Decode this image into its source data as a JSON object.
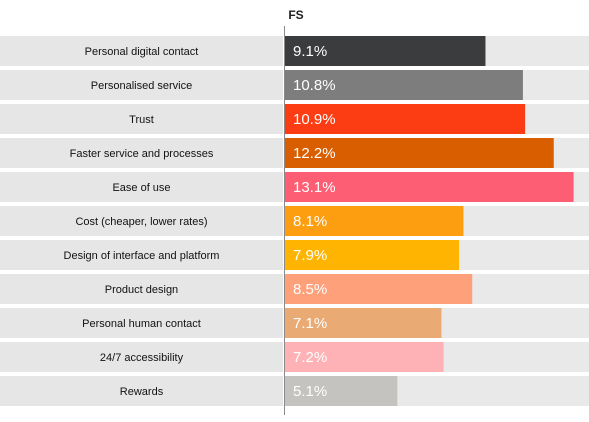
{
  "chart_data": {
    "type": "bar",
    "orientation": "horizontal",
    "column_header": "FS",
    "categories": [
      "Personal digital contact",
      "Personalised service",
      "Trust",
      "Faster service and processes",
      "Ease of use",
      "Cost (cheaper, lower rates)",
      "Design of interface and platform",
      "Product design",
      "Personal human contact",
      "24/7 accessibility",
      "Rewards"
    ],
    "values": [
      9.1,
      10.8,
      10.9,
      12.2,
      13.1,
      8.1,
      7.9,
      8.5,
      7.1,
      7.2,
      5.1
    ],
    "value_labels": [
      "9.1%",
      "10.8%",
      "10.9%",
      "12.2%",
      "13.1%",
      "8.1%",
      "7.9%",
      "8.5%",
      "7.1%",
      "7.2%",
      "5.1%"
    ],
    "colors": [
      "#3b3c3e",
      "#7d7d7d",
      "#fc3d14",
      "#d95e00",
      "#fd5e74",
      "#fd9e10",
      "#feb400",
      "#fea17b",
      "#e9aa74",
      "#feb2b6",
      "#c4c3c0"
    ],
    "xlim": [
      0,
      13.8
    ],
    "title": "",
    "xlabel": "",
    "ylabel": "",
    "legend": "none",
    "grid": false
  }
}
